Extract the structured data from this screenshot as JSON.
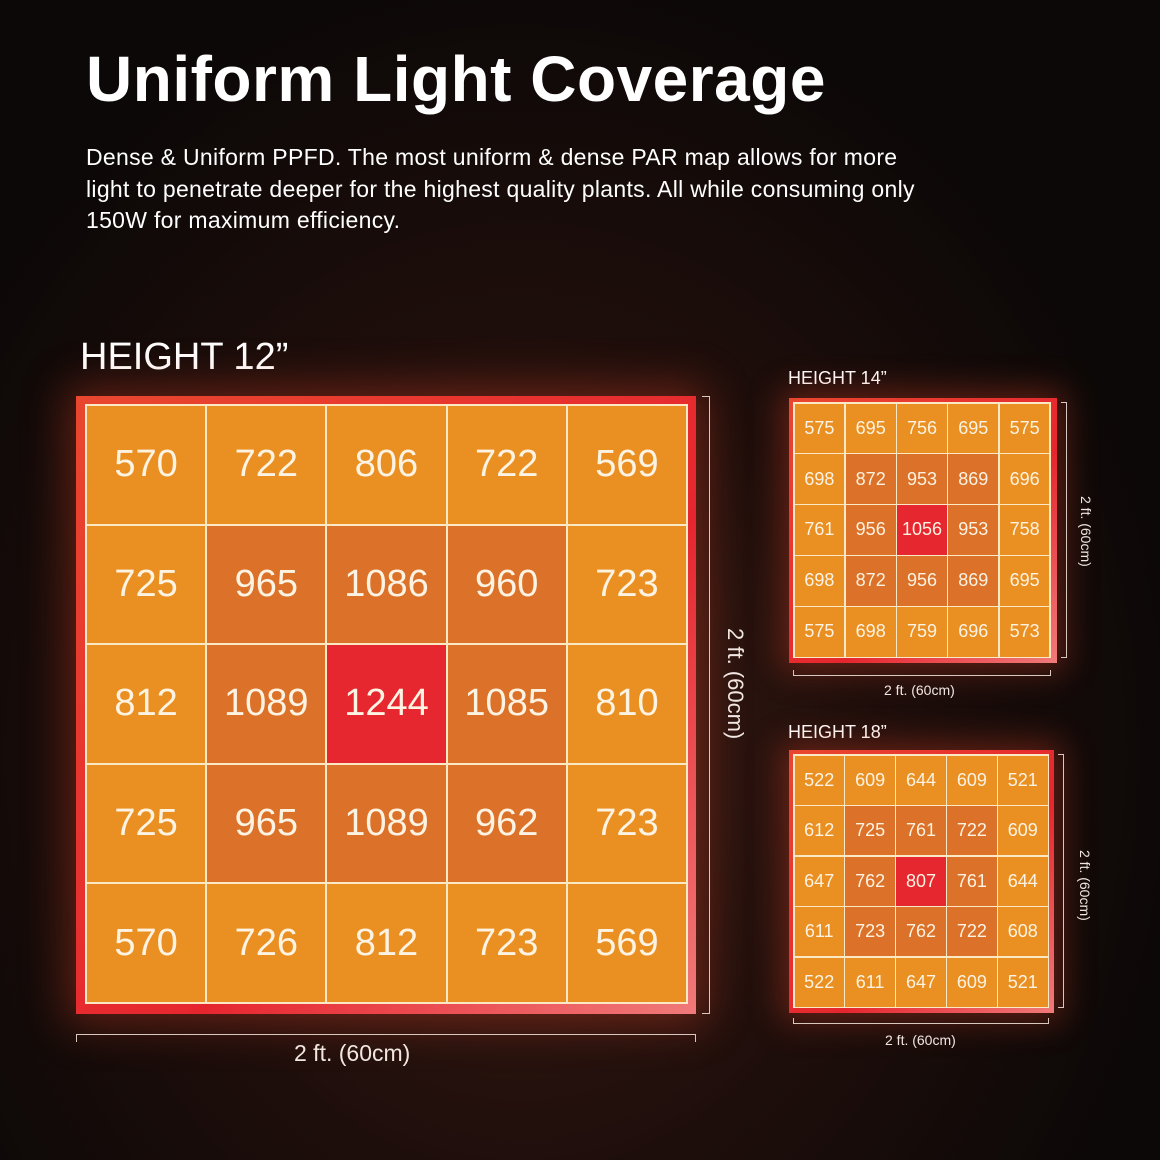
{
  "header": {
    "title": "Uniform Light Coverage",
    "description": "Dense & Uniform PPFD. The most uniform & dense PAR map allows for more light to penetrate deeper for the highest quality plants.  All while consuming only 150W for maximum efficiency."
  },
  "colors": {
    "background": "#0b0807",
    "cell_low": "#ea9023",
    "cell_mid": "#dc7129",
    "cell_peak": "#e6272f",
    "frame": "#e6262f",
    "grid_lines": "#fbe9c6"
  },
  "maps": [
    {
      "label": "HEIGHT 12”",
      "width_label": "2 ft. (60cm)",
      "depth_label": "2 ft. (60cm)",
      "rows": [
        [
          "570",
          "722",
          "806",
          "722",
          "569"
        ],
        [
          "725",
          "965",
          "1086",
          "960",
          "723"
        ],
        [
          "812",
          "1089",
          "1244",
          "1085",
          "810"
        ],
        [
          "725",
          "965",
          "1089",
          "962",
          "723"
        ],
        [
          "570",
          "726",
          "812",
          "723",
          "569"
        ]
      ]
    },
    {
      "label": "HEIGHT 14”",
      "width_label": "2 ft. (60cm)",
      "depth_label": "2 ft. (60cm)",
      "rows": [
        [
          "575",
          "695",
          "756",
          "695",
          "575"
        ],
        [
          "698",
          "872",
          "953",
          "869",
          "696"
        ],
        [
          "761",
          "956",
          "1056",
          "953",
          "758"
        ],
        [
          "698",
          "872",
          "956",
          "869",
          "695"
        ],
        [
          "575",
          "698",
          "759",
          "696",
          "573"
        ]
      ]
    },
    {
      "label": "HEIGHT 18”",
      "width_label": "2 ft. (60cm)",
      "depth_label": "2 ft. (60cm)",
      "rows": [
        [
          "522",
          "609",
          "644",
          "609",
          "521"
        ],
        [
          "612",
          "725",
          "761",
          "722",
          "609"
        ],
        [
          "647",
          "762",
          "807",
          "761",
          "644"
        ],
        [
          "611",
          "723",
          "762",
          "722",
          "608"
        ],
        [
          "522",
          "611",
          "647",
          "609",
          "521"
        ]
      ]
    }
  ],
  "chart_data": [
    {
      "type": "heatmap",
      "title": "HEIGHT 12”",
      "xlabel": "2 ft. (60cm)",
      "ylabel": "2 ft. (60cm)",
      "unit": "PPFD",
      "values": [
        [
          570,
          722,
          806,
          722,
          569
        ],
        [
          725,
          965,
          1086,
          960,
          723
        ],
        [
          812,
          1089,
          1244,
          1085,
          810
        ],
        [
          725,
          965,
          1089,
          962,
          723
        ],
        [
          570,
          726,
          812,
          723,
          569
        ]
      ]
    },
    {
      "type": "heatmap",
      "title": "HEIGHT 14”",
      "xlabel": "2 ft. (60cm)",
      "ylabel": "2 ft. (60cm)",
      "unit": "PPFD",
      "values": [
        [
          575,
          695,
          756,
          695,
          575
        ],
        [
          698,
          872,
          953,
          869,
          696
        ],
        [
          761,
          956,
          1056,
          953,
          758
        ],
        [
          698,
          872,
          956,
          869,
          695
        ],
        [
          575,
          698,
          759,
          696,
          573
        ]
      ]
    },
    {
      "type": "heatmap",
      "title": "HEIGHT 18”",
      "xlabel": "2 ft. (60cm)",
      "ylabel": "2 ft. (60cm)",
      "unit": "PPFD",
      "values": [
        [
          522,
          609,
          644,
          609,
          521
        ],
        [
          612,
          725,
          761,
          722,
          609
        ],
        [
          647,
          762,
          807,
          761,
          644
        ],
        [
          611,
          723,
          762,
          722,
          608
        ],
        [
          522,
          611,
          647,
          609,
          521
        ]
      ]
    }
  ]
}
